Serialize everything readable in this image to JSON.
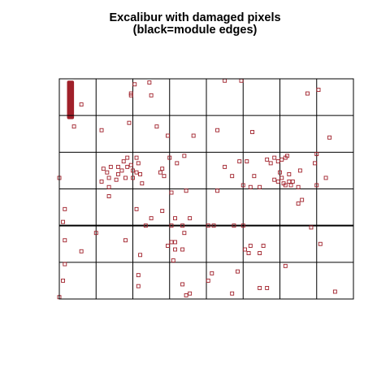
{
  "chart_data": {
    "type": "scatter",
    "title": "Excalibur with damaged pixels",
    "subtitle": "(black=module edges)",
    "xlabel": "",
    "ylabel": "",
    "xlim": [
      0,
      8
    ],
    "ylim": [
      0,
      6
    ],
    "grid": {
      "module_columns": 8,
      "module_rows": 6,
      "thick_row_boundary": 2
    },
    "colors": {
      "module_edges": "#000000",
      "damaged_pixels": "#A0202A"
    },
    "damaged_region": {
      "x0": 0.21,
      "x1": 0.4,
      "y0": 4.9,
      "y1": 5.95
    },
    "damaged_pixels": [
      [
        0.6,
        5.3
      ],
      [
        0.4,
        4.7
      ],
      [
        1.15,
        4.6
      ],
      [
        1.9,
        4.8
      ],
      [
        2.05,
        5.85
      ],
      [
        1.95,
        5.55
      ],
      [
        1.95,
        5.6
      ],
      [
        2.5,
        5.55
      ],
      [
        2.45,
        5.9
      ],
      [
        4.5,
        5.95
      ],
      [
        4.95,
        5.95
      ],
      [
        6.75,
        5.6
      ],
      [
        7.05,
        5.7
      ],
      [
        2.65,
        4.7
      ],
      [
        2.95,
        4.45
      ],
      [
        3.65,
        4.45
      ],
      [
        4.3,
        4.6
      ],
      [
        5.25,
        4.55
      ],
      [
        7.35,
        4.4
      ],
      [
        7.0,
        3.95
      ],
      [
        2.1,
        3.85
      ],
      [
        2.15,
        3.7
      ],
      [
        1.85,
        3.6
      ],
      [
        2.0,
        3.5
      ],
      [
        1.95,
        3.65
      ],
      [
        1.6,
        3.6
      ],
      [
        1.75,
        3.75
      ],
      [
        1.85,
        3.85
      ],
      [
        1.7,
        3.5
      ],
      [
        1.6,
        3.4
      ],
      [
        1.4,
        3.6
      ],
      [
        1.2,
        3.55
      ],
      [
        1.3,
        3.45
      ],
      [
        1.35,
        3.3
      ],
      [
        1.55,
        3.25
      ],
      [
        1.8,
        3.3
      ],
      [
        2.0,
        3.3
      ],
      [
        2.1,
        3.45
      ],
      [
        2.2,
        3.4
      ],
      [
        1.15,
        3.2
      ],
      [
        2.25,
        3.15
      ],
      [
        1.35,
        3.05
      ],
      [
        0.0,
        3.3
      ],
      [
        2.8,
        3.55
      ],
      [
        2.75,
        3.45
      ],
      [
        2.85,
        3.35
      ],
      [
        3.0,
        3.85
      ],
      [
        3.2,
        3.7
      ],
      [
        3.4,
        3.9
      ],
      [
        4.5,
        3.6
      ],
      [
        4.7,
        3.35
      ],
      [
        4.9,
        3.75
      ],
      [
        5.1,
        3.75
      ],
      [
        5.3,
        3.35
      ],
      [
        5.65,
        3.8
      ],
      [
        5.75,
        3.7
      ],
      [
        5.85,
        3.85
      ],
      [
        5.95,
        3.75
      ],
      [
        6.05,
        3.8
      ],
      [
        6.15,
        3.85
      ],
      [
        6.2,
        3.9
      ],
      [
        6.0,
        3.45
      ],
      [
        6.05,
        3.3
      ],
      [
        5.85,
        3.25
      ],
      [
        5.95,
        3.2
      ],
      [
        6.1,
        3.15
      ],
      [
        6.15,
        3.1
      ],
      [
        6.25,
        3.2
      ],
      [
        6.35,
        3.2
      ],
      [
        6.25,
        3.4
      ],
      [
        6.3,
        3.1
      ],
      [
        6.55,
        3.5
      ],
      [
        6.95,
        3.7
      ],
      [
        7.25,
        3.3
      ],
      [
        5.2,
        3.05
      ],
      [
        5.0,
        3.1
      ],
      [
        7.0,
        3.1
      ],
      [
        6.5,
        3.05
      ],
      [
        1.35,
        2.8
      ],
      [
        3.05,
        2.9
      ],
      [
        3.45,
        2.95
      ],
      [
        4.3,
        2.95
      ],
      [
        5.45,
        3.05
      ],
      [
        6.6,
        2.7
      ],
      [
        6.5,
        2.6
      ],
      [
        0.15,
        2.45
      ],
      [
        0.1,
        2.1
      ],
      [
        2.1,
        2.45
      ],
      [
        2.5,
        2.2
      ],
      [
        2.35,
        2.0
      ],
      [
        2.8,
        2.4
      ],
      [
        3.15,
        2.2
      ],
      [
        3.05,
        2.0
      ],
      [
        3.55,
        2.2
      ],
      [
        3.35,
        2.0
      ],
      [
        4.2,
        2.0
      ],
      [
        4.05,
        2.0
      ],
      [
        4.75,
        2.0
      ],
      [
        5.0,
        2.0
      ],
      [
        6.85,
        1.95
      ],
      [
        0.15,
        1.6
      ],
      [
        1.0,
        1.8
      ],
      [
        0.6,
        1.3
      ],
      [
        0.15,
        0.95
      ],
      [
        1.8,
        1.6
      ],
      [
        2.2,
        1.2
      ],
      [
        2.95,
        1.45
      ],
      [
        3.05,
        1.55
      ],
      [
        3.15,
        1.55
      ],
      [
        3.4,
        1.8
      ],
      [
        3.35,
        1.35
      ],
      [
        3.15,
        1.35
      ],
      [
        3.1,
        1.05
      ],
      [
        5.05,
        1.35
      ],
      [
        5.2,
        1.45
      ],
      [
        5.15,
        1.25
      ],
      [
        5.45,
        1.25
      ],
      [
        5.55,
        1.45
      ],
      [
        7.1,
        1.5
      ],
      [
        0.1,
        0.5
      ],
      [
        2.15,
        0.65
      ],
      [
        2.15,
        0.35
      ],
      [
        3.35,
        0.4
      ],
      [
        3.45,
        0.1
      ],
      [
        3.55,
        0.15
      ],
      [
        4.05,
        0.5
      ],
      [
        4.15,
        0.7
      ],
      [
        4.85,
        0.75
      ],
      [
        4.7,
        0.15
      ],
      [
        5.45,
        0.3
      ],
      [
        5.65,
        0.3
      ],
      [
        6.15,
        0.9
      ],
      [
        7.5,
        0.2
      ],
      [
        0.0,
        0.05
      ]
    ]
  }
}
